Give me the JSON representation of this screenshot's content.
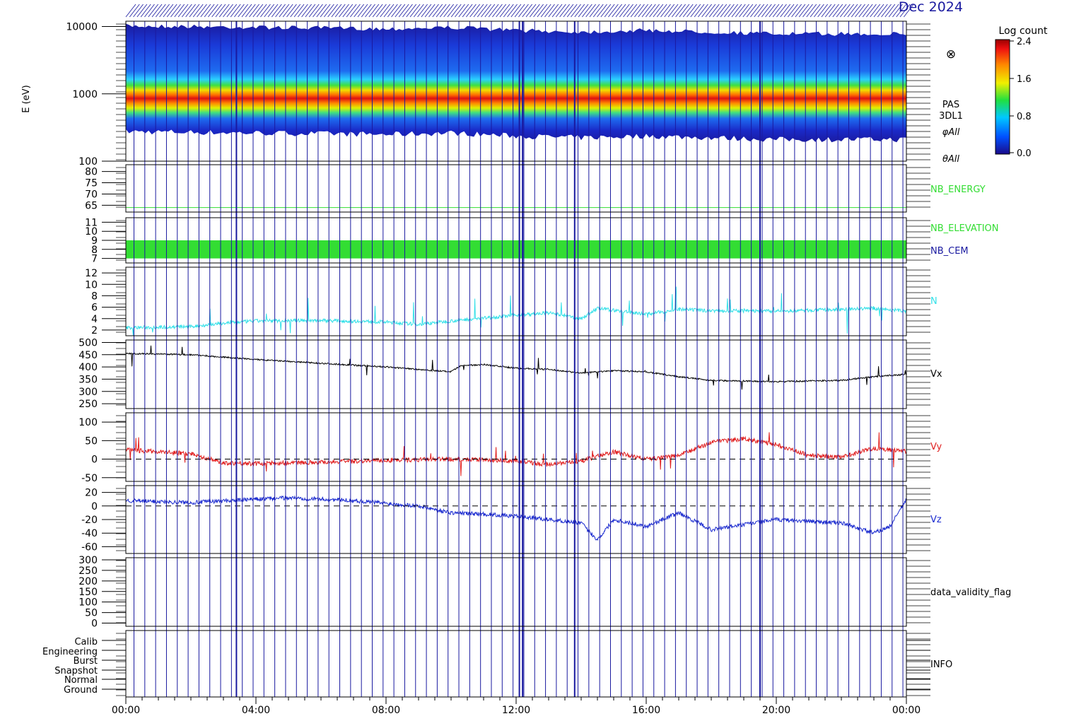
{
  "header": {
    "date_text": "Dec 2024"
  },
  "colors": {
    "axis": "#000000",
    "marker": "#1a1aa0",
    "nb_energy": "#33dd33",
    "nb_elevation": "#33dd33",
    "nb_cem": "#1a1aa0",
    "n": "#33e0e8",
    "vx": "#000000",
    "vy": "#e02020",
    "vz": "#1a2ad0"
  },
  "colorbar": {
    "title": "Log count",
    "ticks": [
      "2.4",
      "1.6",
      "0.8",
      "0.0"
    ],
    "range": [
      0.0,
      2.4
    ]
  },
  "x_axis": {
    "tick_labels": [
      "00:00",
      "04:00",
      "08:00",
      "12:00",
      "16:00",
      "20:00",
      "00:00"
    ],
    "range_hours": [
      0,
      24
    ]
  },
  "markers": {
    "thick_hours": [
      3.4,
      12.1,
      12.2,
      13.8,
      19.5
    ],
    "thin_spacing_hours": 0.333
  },
  "chart_data": [
    {
      "type": "heatmap",
      "id": "pas",
      "ylabel": "E (eV)",
      "yscale": "log",
      "ylim": [
        100,
        12000
      ],
      "ytick_labels": [
        "10000",
        "1000",
        "100"
      ],
      "ytick_values": [
        10000,
        1000,
        100
      ],
      "side_labels": [
        "PAS",
        "3DL1",
        "φAll",
        "θAll"
      ],
      "side_symbol": "⊗",
      "peak_energy_ev": {
        "x_hours": [
          0,
          4,
          8,
          10,
          12,
          14,
          16,
          20,
          24
        ],
        "y": [
          1050,
          1000,
          950,
          1000,
          900,
          850,
          900,
          800,
          800
        ]
      }
    },
    {
      "type": "line",
      "id": "nb_energy",
      "ylim": [
        62,
        83
      ],
      "ytick_labels": [
        "80",
        "75",
        "70",
        "65"
      ],
      "ytick_values": [
        80,
        75,
        70,
        65
      ],
      "series": [
        {
          "name": "NB_ENERGY",
          "x_hours": [
            0,
            24
          ],
          "values": [
            64,
            64
          ]
        }
      ]
    },
    {
      "type": "bar",
      "id": "nb_elevation",
      "ylim": [
        6.5,
        11.5
      ],
      "ytick_labels": [
        "11",
        "10",
        "9",
        "8",
        "7"
      ],
      "ytick_values": [
        11,
        10,
        9,
        8,
        7
      ],
      "band": [
        7,
        9
      ],
      "series": [
        {
          "name": "NB_ELEVATION"
        },
        {
          "name": "NB_CEM"
        }
      ]
    },
    {
      "type": "line",
      "id": "n",
      "ylim": [
        1,
        13
      ],
      "ytick_labels": [
        "12",
        "10",
        "8",
        "6",
        "4",
        "2"
      ],
      "ytick_values": [
        12,
        10,
        8,
        6,
        4,
        2
      ],
      "series": [
        {
          "name": "N",
          "x_hours": [
            0,
            2,
            3,
            4,
            6,
            8,
            9,
            10,
            11,
            12,
            13,
            14,
            14.5,
            16,
            17,
            18,
            20,
            22,
            23,
            24
          ],
          "values": [
            2.4,
            2.6,
            3.2,
            3.6,
            3.7,
            3.4,
            3.0,
            3.6,
            4.1,
            4.6,
            5.0,
            4.0,
            5.8,
            4.8,
            5.6,
            5.4,
            5.3,
            5.6,
            5.8,
            5.3
          ]
        }
      ]
    },
    {
      "type": "line",
      "id": "vx",
      "ylim": [
        230,
        510
      ],
      "ytick_labels": [
        "500",
        "450",
        "400",
        "350",
        "300",
        "250"
      ],
      "ytick_values": [
        500,
        450,
        400,
        350,
        300,
        250
      ],
      "series": [
        {
          "name": "Vx",
          "x_hours": [
            0,
            2,
            4,
            6,
            8,
            10,
            10.3,
            11,
            12,
            13,
            14,
            15,
            16,
            17,
            18,
            20,
            22,
            23,
            24
          ],
          "values": [
            455,
            450,
            430,
            415,
            400,
            380,
            405,
            410,
            395,
            390,
            375,
            385,
            380,
            360,
            345,
            340,
            345,
            360,
            370
          ]
        }
      ]
    },
    {
      "type": "line",
      "id": "vy",
      "ylim": [
        -60,
        125
      ],
      "ytick_labels": [
        "100",
        "50",
        "0",
        "-50"
      ],
      "ytick_values": [
        100,
        50,
        0,
        -50
      ],
      "zero_line": true,
      "series": [
        {
          "name": "Vy",
          "x_hours": [
            0,
            2,
            3,
            4,
            6,
            8,
            10,
            12,
            13,
            14,
            15,
            16,
            17,
            18,
            19,
            20,
            21,
            22,
            23,
            24
          ],
          "values": [
            25,
            15,
            -10,
            -12,
            -8,
            -3,
            0,
            -5,
            -15,
            -5,
            20,
            0,
            10,
            45,
            55,
            40,
            10,
            5,
            30,
            20
          ]
        }
      ]
    },
    {
      "type": "line",
      "id": "vz",
      "ylim": [
        -70,
        30
      ],
      "ytick_labels": [
        "20",
        "0",
        "-20",
        "-40",
        "-60"
      ],
      "ytick_values": [
        20,
        0,
        -20,
        -40,
        -60
      ],
      "zero_line": true,
      "series": [
        {
          "name": "Vz",
          "x_hours": [
            0,
            2,
            4,
            5,
            7,
            9,
            10,
            11,
            12,
            13,
            14,
            14.5,
            15,
            16,
            17,
            18,
            20,
            22,
            23,
            23.5,
            24
          ],
          "values": [
            8,
            5,
            10,
            12,
            8,
            0,
            -10,
            -12,
            -15,
            -20,
            -25,
            -50,
            -20,
            -30,
            -10,
            -35,
            -20,
            -25,
            -40,
            -30,
            10
          ]
        }
      ]
    },
    {
      "type": "line",
      "id": "validity",
      "ylim": [
        -15,
        310
      ],
      "ytick_labels": [
        "300",
        "250",
        "200",
        "150",
        "100",
        "50",
        "0"
      ],
      "ytick_values": [
        300,
        250,
        200,
        150,
        100,
        50,
        0
      ],
      "series": [
        {
          "name": "data_validity_flag",
          "x_hours": [],
          "values": []
        }
      ]
    },
    {
      "type": "table",
      "id": "info",
      "row_labels": [
        "Calib",
        "Engineering",
        "Burst",
        "Snapshot",
        "Normal",
        "Ground"
      ],
      "series": [
        {
          "name": "INFO"
        }
      ]
    }
  ]
}
